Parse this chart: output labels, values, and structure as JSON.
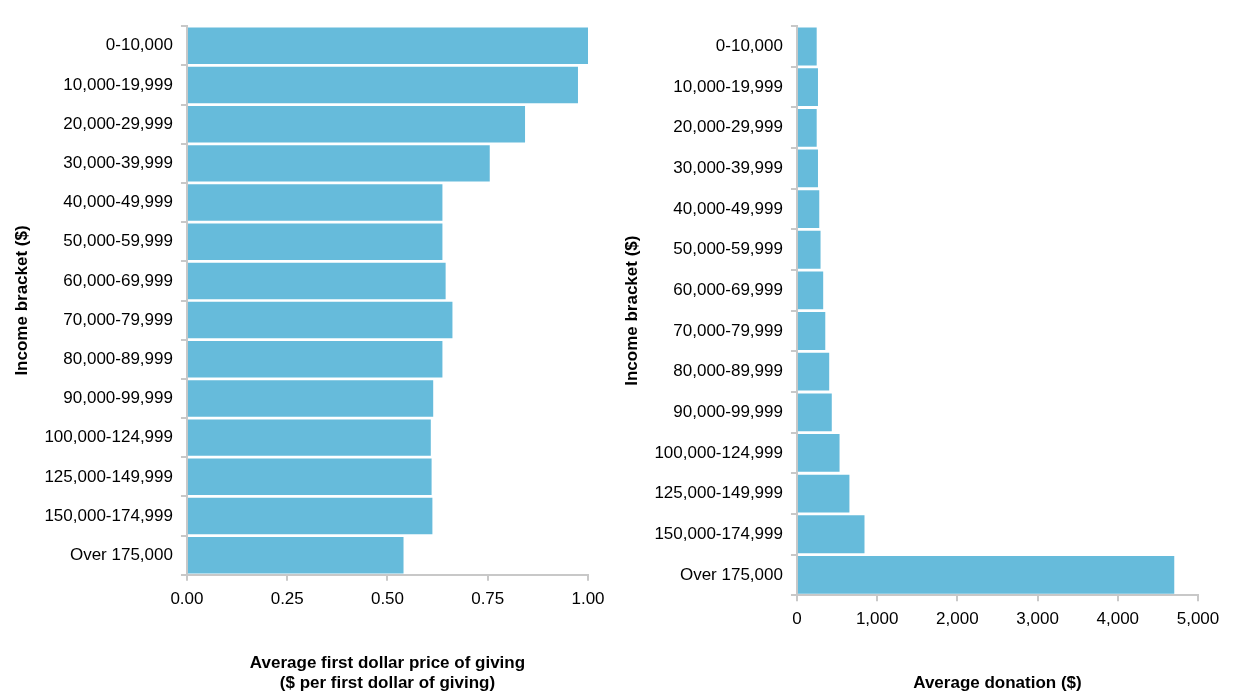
{
  "chart_data": [
    {
      "type": "bar",
      "orientation": "horizontal",
      "ylabel": "Income bracket ($)",
      "xlabel": "Average first dollar price of giving\n($ per first dollar of giving)",
      "categories": [
        "0-10,000",
        "10,000-19,999",
        "20,000-29,999",
        "30,000-39,999",
        "40,000-49,999",
        "50,000-59,999",
        "60,000-69,999",
        "70,000-79,999",
        "80,000-89,999",
        "90,000-99,999",
        "100,000-124,999",
        "125,000-149,999",
        "150,000-174,999",
        "Over 175,000"
      ],
      "values": [
        1.0,
        0.975,
        0.843,
        0.755,
        0.637,
        0.637,
        0.645,
        0.662,
        0.637,
        0.614,
        0.608,
        0.61,
        0.612,
        0.54
      ],
      "color": "#66bbdb",
      "xlim": [
        0,
        1
      ],
      "xticks": [
        {
          "value": 0,
          "label": "0.00"
        },
        {
          "value": 0.25,
          "label": "0.25"
        },
        {
          "value": 0.5,
          "label": "0.50"
        },
        {
          "value": 0.75,
          "label": "0.75"
        },
        {
          "value": 1,
          "label": "1.00"
        }
      ],
      "grid": false,
      "legend": false
    },
    {
      "type": "bar",
      "orientation": "horizontal",
      "ylabel": "Income bracket ($)",
      "xlabel": "Average donation ($)",
      "categories": [
        "0-10,000",
        "10,000-19,999",
        "20,000-29,999",
        "30,000-39,999",
        "40,000-49,999",
        "50,000-59,999",
        "60,000-69,999",
        "70,000-79,999",
        "80,000-89,999",
        "90,000-99,999",
        "100,000-124,999",
        "125,000-149,999",
        "150,000-174,999",
        "Over 175,000"
      ],
      "values": [
        246,
        262,
        246,
        262,
        278,
        294,
        327,
        353,
        402,
        434,
        531,
        654,
        842,
        4704
      ],
      "color": "#66bbdb",
      "xlim": [
        0,
        5000
      ],
      "xticks": [
        0,
        {
          "value": 1000,
          "label": "1,000"
        },
        {
          "value": 2000,
          "label": "2,000"
        },
        {
          "value": 3000,
          "label": "3,000"
        },
        {
          "value": 4000,
          "label": "4,000"
        },
        {
          "value": 5000,
          "label": "5,000"
        }
      ],
      "grid": false,
      "legend": false
    }
  ]
}
